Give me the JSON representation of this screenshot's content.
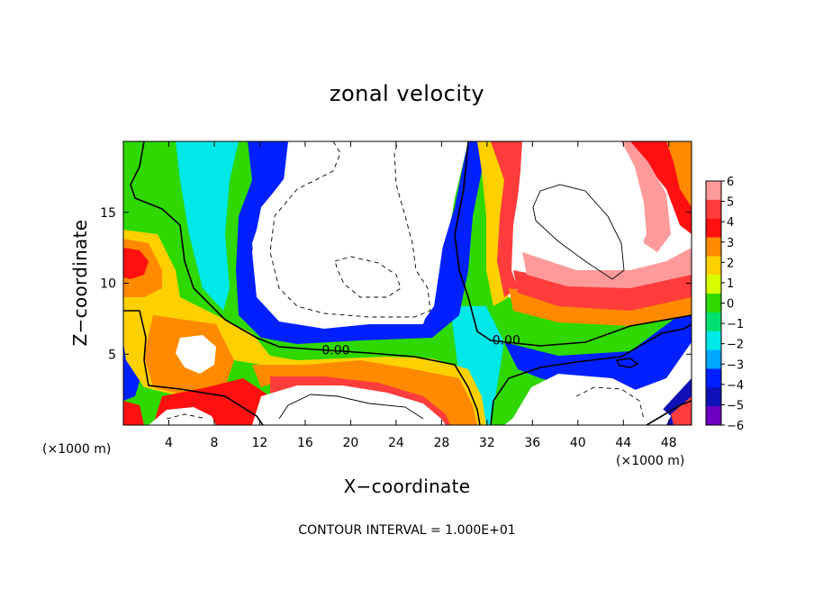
{
  "chart_data": {
    "type": "heatmap",
    "title": "zonal velocity",
    "xlabel": "X−coordinate",
    "ylabel": "Z−coordinate",
    "x_unit": "(×1000 m)",
    "z_unit": "(×1000 m)",
    "xlim": [
      0,
      50
    ],
    "ylim": [
      0,
      20
    ],
    "x_ticks": [
      4,
      8,
      12,
      16,
      20,
      24,
      28,
      32,
      36,
      40,
      44,
      48
    ],
    "y_ticks": [
      5,
      10,
      15
    ],
    "x_tick_labels": [
      "4",
      "8",
      "12",
      "16",
      "20",
      "24",
      "28",
      "32",
      "36",
      "40",
      "44",
      "48"
    ],
    "y_tick_labels": [
      "5",
      "10",
      "15"
    ],
    "colorbar": {
      "values": [
        6,
        5,
        4,
        3,
        2,
        1,
        0,
        -1,
        -2,
        -3,
        -4,
        -5,
        -6
      ],
      "labels": [
        "6",
        "5",
        "4",
        "3",
        "2",
        "1",
        "0",
        "−1",
        "−2",
        "−3",
        "−4",
        "−5",
        "−6"
      ],
      "colors": [
        "#ff9a9a",
        "#ff3c3c",
        "#ff1010",
        "#ff8a00",
        "#ffd000",
        "#d8ff00",
        "#2ed800",
        "#00e070",
        "#00e8e8",
        "#00a8ff",
        "#0020ff",
        "#1010b8",
        "#7000c0"
      ]
    },
    "contour_labels": [
      {
        "text": "0.00",
        "x": 18.7,
        "y": 5.3
      },
      {
        "text": "0.00",
        "x": 33.7,
        "y": 6.0
      }
    ],
    "footnote": "CONTOUR INTERVAL = 1.000E+01",
    "grid": false,
    "legend": "colorbar-right"
  }
}
